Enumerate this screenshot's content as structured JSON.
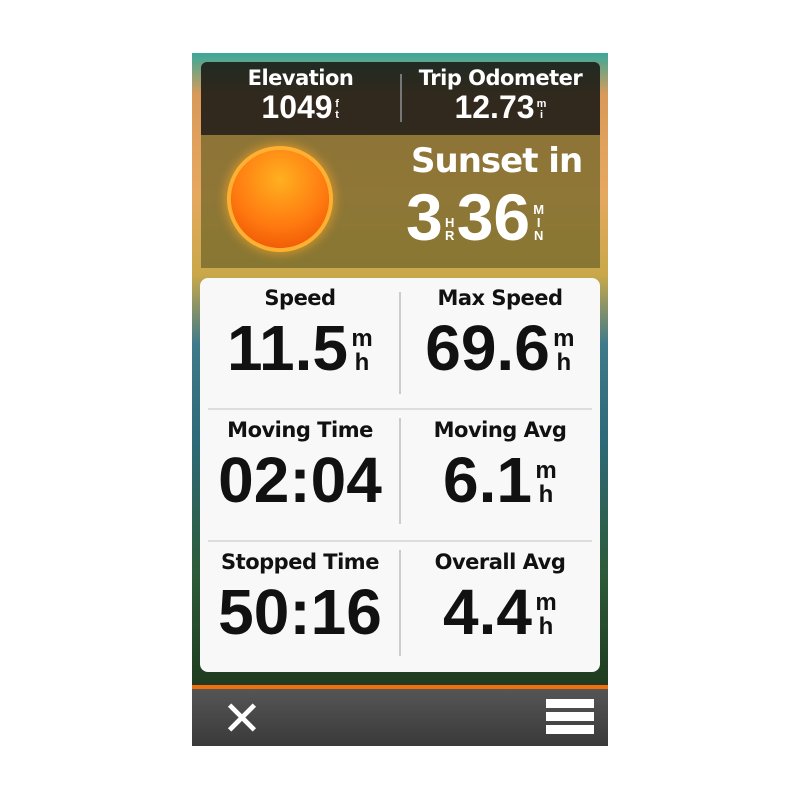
{
  "header": {
    "elevation": {
      "label": "Elevation",
      "value": "1049",
      "unit": "ft"
    },
    "trip_odometer": {
      "label": "Trip Odometer",
      "value": "12.73",
      "unit": "mi"
    }
  },
  "sunset": {
    "label": "Sunset in",
    "hours": "3",
    "hours_unit": "HR",
    "minutes": "36",
    "minutes_unit": "MIN"
  },
  "fields": [
    {
      "label": "Speed",
      "value": "11.5",
      "unit": "mh"
    },
    {
      "label": "Max Speed",
      "value": "69.6",
      "unit": "mh"
    },
    {
      "label": "Moving Time",
      "value": "02:04",
      "unit": ""
    },
    {
      "label": "Moving Avg",
      "value": "6.1",
      "unit": "mh"
    },
    {
      "label": "Stopped Time",
      "value": "50:16",
      "unit": ""
    },
    {
      "label": "Overall Avg",
      "value": "4.4",
      "unit": "mh"
    }
  ],
  "toolbar": {
    "close_icon": "close-x-icon",
    "menu_icon": "menu-hamburger-icon"
  },
  "colors": {
    "accent": "#f07010"
  }
}
